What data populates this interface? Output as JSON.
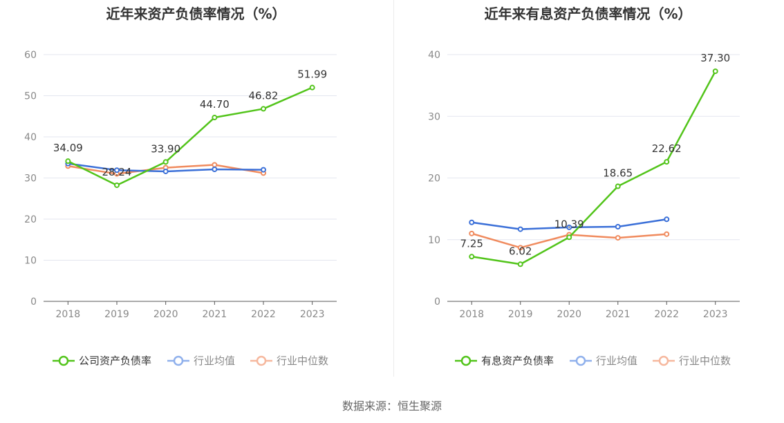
{
  "source": "数据来源：恒生聚源",
  "chart_data": [
    {
      "type": "line",
      "title": "近年来资产负债率情况（%）",
      "categories": [
        "2018",
        "2019",
        "2020",
        "2021",
        "2022",
        "2023"
      ],
      "ylim": [
        0,
        60
      ],
      "yticks": [
        0,
        10,
        20,
        30,
        40,
        50,
        60
      ],
      "grid": true,
      "legend_position": "bottom",
      "series": [
        {
          "name": "公司资产负债率",
          "color": "#52c41a",
          "values": [
            34.09,
            28.24,
            33.9,
            44.7,
            46.82,
            51.99
          ],
          "labels": [
            "34.09",
            "28.24",
            "33.90",
            "44.70",
            "46.82",
            "51.99"
          ]
        },
        {
          "name": "行业均值",
          "color": "#3a6fd8",
          "values": [
            33.5,
            31.9,
            31.6,
            32.1,
            32.0,
            null
          ]
        },
        {
          "name": "行业中位数",
          "color": "#f08a5d",
          "values": [
            32.9,
            31.0,
            32.5,
            33.2,
            31.2,
            null
          ]
        }
      ]
    },
    {
      "type": "line",
      "title": "近年来有息资产负债率情况（%）",
      "categories": [
        "2018",
        "2019",
        "2020",
        "2021",
        "2022",
        "2023"
      ],
      "ylim": [
        0,
        40
      ],
      "yticks": [
        0,
        10,
        20,
        30,
        40
      ],
      "grid": true,
      "legend_position": "bottom",
      "series": [
        {
          "name": "有息资产负债率",
          "color": "#52c41a",
          "values": [
            7.25,
            6.02,
            10.39,
            18.65,
            22.62,
            37.3
          ],
          "labels": [
            "7.25",
            "6.02",
            "10.39",
            "18.65",
            "22.62",
            "37.30"
          ]
        },
        {
          "name": "行业均值",
          "color": "#3a6fd8",
          "values": [
            12.8,
            11.7,
            12.0,
            12.1,
            13.3,
            null
          ]
        },
        {
          "name": "行业中位数",
          "color": "#f08a5d",
          "values": [
            11.0,
            8.7,
            10.8,
            10.3,
            10.9,
            null
          ]
        }
      ]
    }
  ]
}
